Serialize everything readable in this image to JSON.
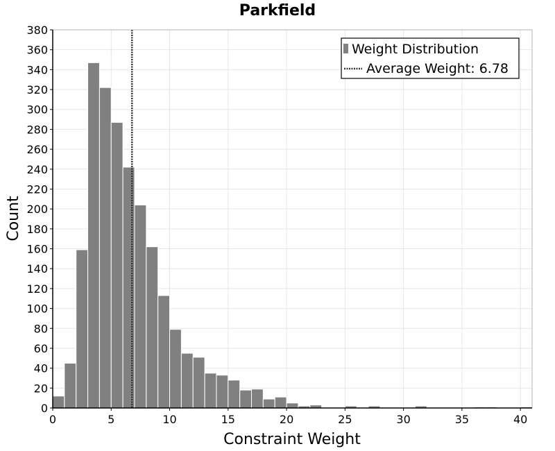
{
  "chart_data": {
    "type": "bar",
    "title": "Parkfield",
    "xlabel": "Constraint Weight",
    "ylabel": "Count",
    "xlim": [
      0,
      41
    ],
    "ylim": [
      0,
      380
    ],
    "xticks": [
      0,
      5,
      10,
      15,
      20,
      25,
      30,
      35,
      40
    ],
    "yticks": [
      0,
      20,
      40,
      60,
      80,
      100,
      120,
      140,
      160,
      180,
      200,
      220,
      240,
      260,
      280,
      300,
      320,
      340,
      360,
      380
    ],
    "bin_width": 1,
    "series": [
      {
        "name": "Weight Distribution",
        "color": "#808080",
        "bins": [
          {
            "x": 0,
            "value": 12
          },
          {
            "x": 1,
            "value": 45
          },
          {
            "x": 2,
            "value": 159
          },
          {
            "x": 3,
            "value": 347
          },
          {
            "x": 4,
            "value": 322
          },
          {
            "x": 5,
            "value": 287
          },
          {
            "x": 6,
            "value": 242
          },
          {
            "x": 7,
            "value": 204
          },
          {
            "x": 8,
            "value": 162
          },
          {
            "x": 9,
            "value": 113
          },
          {
            "x": 10,
            "value": 79
          },
          {
            "x": 11,
            "value": 55
          },
          {
            "x": 12,
            "value": 51
          },
          {
            "x": 13,
            "value": 35
          },
          {
            "x": 14,
            "value": 33
          },
          {
            "x": 15,
            "value": 28
          },
          {
            "x": 16,
            "value": 18
          },
          {
            "x": 17,
            "value": 19
          },
          {
            "x": 18,
            "value": 9
          },
          {
            "x": 19,
            "value": 11
          },
          {
            "x": 20,
            "value": 5
          },
          {
            "x": 21,
            "value": 2
          },
          {
            "x": 22,
            "value": 3
          },
          {
            "x": 25,
            "value": 2
          },
          {
            "x": 27,
            "value": 2
          },
          {
            "x": 31,
            "value": 2
          },
          {
            "x": 36,
            "value": 1
          },
          {
            "x": 37,
            "value": 1
          },
          {
            "x": 40,
            "value": 1
          }
        ]
      }
    ],
    "average": {
      "name": "Average Weight: 6.78",
      "value": 6.78,
      "style": "dotted",
      "color": "#333333"
    },
    "legend": {
      "position": "top-right",
      "entries": [
        "Weight Distribution",
        "Average Weight: 6.78"
      ]
    },
    "grid": true
  }
}
